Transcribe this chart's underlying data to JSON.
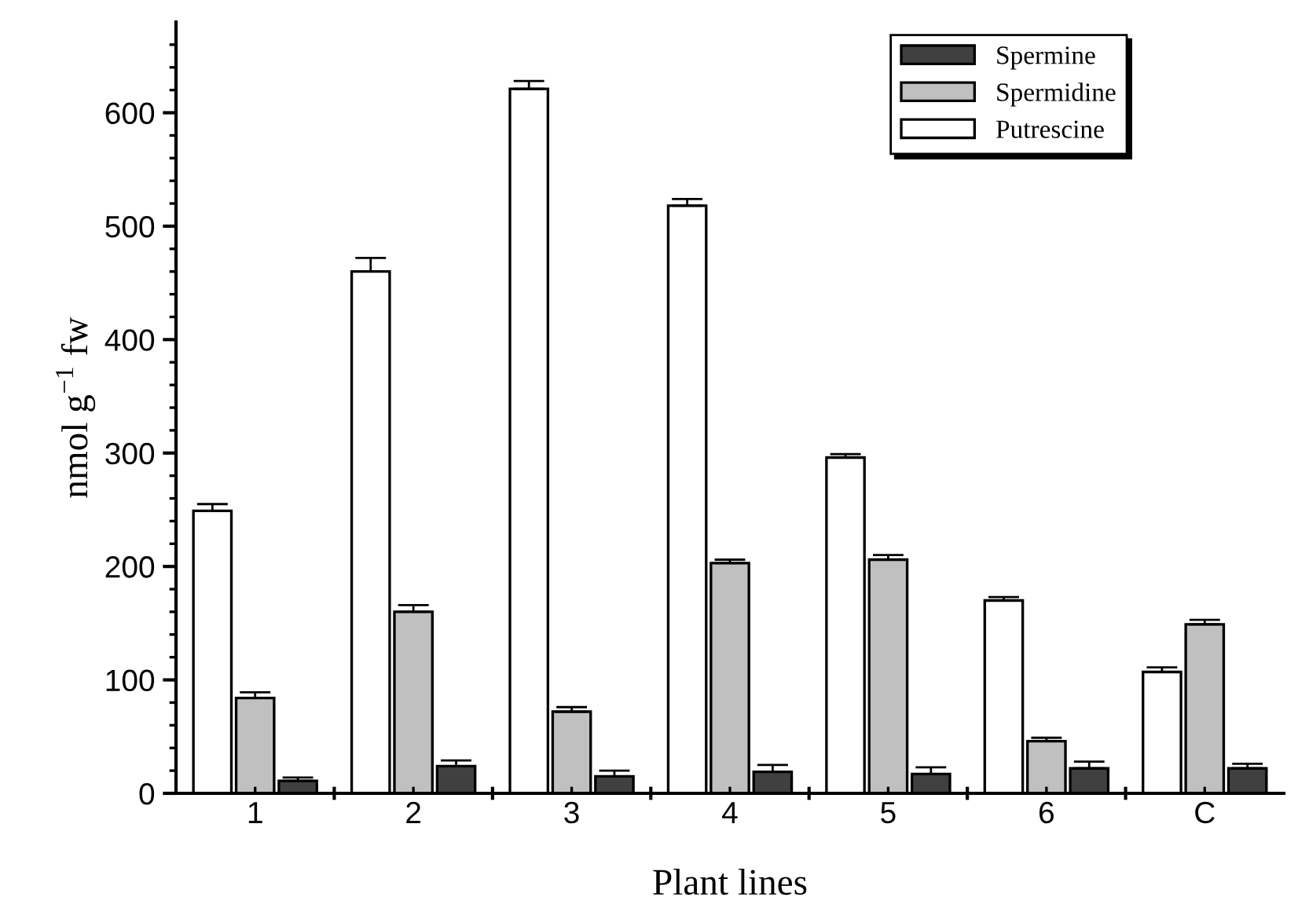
{
  "chart_data": {
    "type": "bar",
    "xlabel": "Plant lines",
    "ylabel": "nmol g$^{−1}$ fw",
    "categories": [
      "1",
      "2",
      "3",
      "4",
      "5",
      "6",
      "C"
    ],
    "series": [
      {
        "name": "Putrescine",
        "color": "#ffffff",
        "values": [
          249,
          460,
          621,
          518,
          296,
          170,
          107
        ],
        "errors": [
          6,
          12,
          7,
          6,
          3,
          3,
          4
        ]
      },
      {
        "name": "Spermidine",
        "color": "#c0c0c0",
        "values": [
          84,
          160,
          72,
          203,
          206,
          46,
          149
        ],
        "errors": [
          5,
          6,
          4,
          3,
          4,
          3,
          4
        ]
      },
      {
        "name": "Spermine",
        "color": "#404040",
        "values": [
          11,
          24,
          15,
          19,
          17,
          22,
          22
        ],
        "errors": [
          3,
          5,
          5,
          6,
          6,
          6,
          4
        ]
      }
    ],
    "ylim": [
      0,
      680
    ],
    "yticks": [
      0,
      {
        "value": 20,
        "label": null
      },
      {
        "value": 40,
        "label": null
      },
      {
        "value": 60,
        "label": null
      },
      {
        "value": 80,
        "label": null
      },
      100,
      {
        "value": 120,
        "label": null
      },
      {
        "value": 140,
        "label": null
      },
      {
        "value": 160,
        "label": null
      },
      {
        "value": 180,
        "label": null
      },
      200,
      {
        "value": 220,
        "label": null
      },
      {
        "value": 240,
        "label": null
      },
      {
        "value": 260,
        "label": null
      },
      {
        "value": 280,
        "label": null
      },
      300,
      {
        "value": 320,
        "label": null
      },
      {
        "value": 340,
        "label": null
      },
      {
        "value": 360,
        "label": null
      },
      {
        "value": 380,
        "label": null
      },
      400,
      {
        "value": 420,
        "label": null
      },
      {
        "value": 440,
        "label": null
      },
      {
        "value": 460,
        "label": null
      },
      {
        "value": 480,
        "label": null
      },
      500,
      {
        "value": 520,
        "label": null
      },
      {
        "value": 540,
        "label": null
      },
      {
        "value": 560,
        "label": null
      },
      {
        "value": 580,
        "label": null
      },
      600,
      {
        "value": 620,
        "label": null
      },
      {
        "value": 640,
        "label": null
      },
      {
        "value": 660,
        "label": null
      }
    ],
    "grid": false,
    "legend": "top right"
  }
}
